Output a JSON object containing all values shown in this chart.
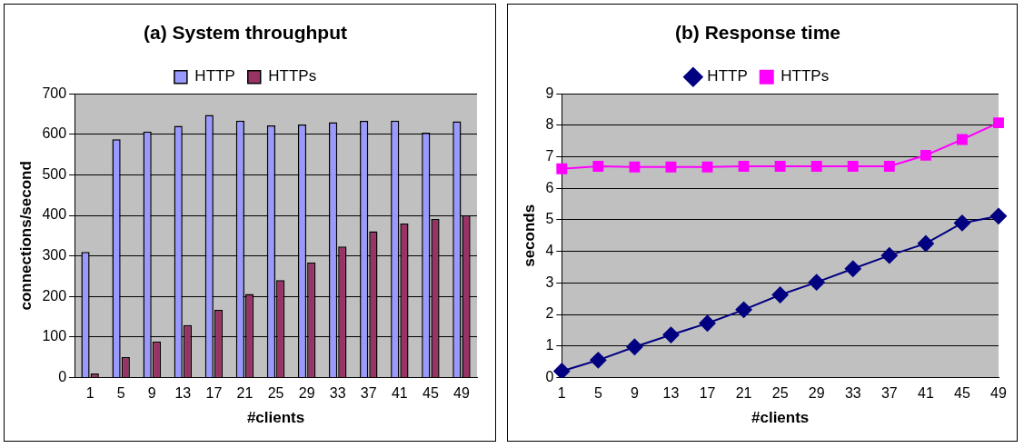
{
  "chart_data": [
    {
      "type": "bar",
      "title": "(a) System throughput",
      "xlabel": "#clients",
      "ylabel": "connections/second",
      "categories": [
        "1",
        "5",
        "9",
        "13",
        "17",
        "21",
        "25",
        "29",
        "33",
        "37",
        "41",
        "45",
        "49"
      ],
      "series": [
        {
          "name": "HTTP",
          "color": "#9999ff",
          "values": [
            310,
            588,
            607,
            621,
            648,
            634,
            622,
            624,
            630,
            633,
            634,
            604,
            632
          ]
        },
        {
          "name": "HTTPs",
          "color": "#993366",
          "values": [
            10,
            50,
            89,
            129,
            167,
            206,
            240,
            284,
            323,
            361,
            380,
            391,
            400
          ]
        }
      ],
      "ylim": [
        0,
        700
      ],
      "yticks": [
        0,
        100,
        200,
        300,
        400,
        500,
        600,
        700
      ],
      "grid": "y",
      "legend": "top"
    },
    {
      "type": "line",
      "title": "(b) Response time",
      "xlabel": "#clients",
      "ylabel": "seconds",
      "categories": [
        "1",
        "5",
        "9",
        "13",
        "17",
        "21",
        "25",
        "29",
        "33",
        "37",
        "41",
        "45",
        "49"
      ],
      "series": [
        {
          "name": "HTTP",
          "color": "#000080",
          "marker": "diamond",
          "values": [
            0.2,
            0.55,
            0.97,
            1.35,
            1.72,
            2.15,
            2.62,
            3.02,
            3.45,
            3.87,
            4.25,
            4.9,
            5.12
          ]
        },
        {
          "name": "HTTPs",
          "color": "#ff00ff",
          "marker": "square",
          "values": [
            6.62,
            6.7,
            6.68,
            6.68,
            6.68,
            6.7,
            6.7,
            6.7,
            6.7,
            6.7,
            7.05,
            7.55,
            8.08
          ]
        }
      ],
      "ylim": [
        0,
        9
      ],
      "yticks": [
        0,
        1,
        2,
        3,
        4,
        5,
        6,
        7,
        8,
        9
      ],
      "grid": "y",
      "legend": "top"
    }
  ]
}
